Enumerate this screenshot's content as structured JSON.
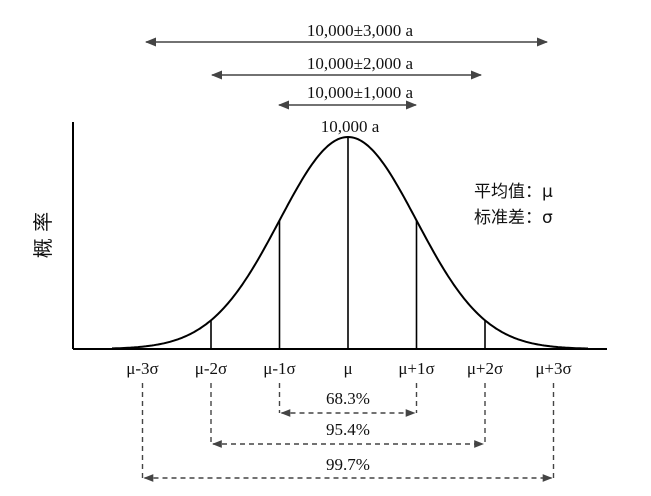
{
  "ranges": [
    {
      "label": "10,000±3,000 a",
      "k": 3
    },
    {
      "label": "10,000±2,000 a",
      "k": 2
    },
    {
      "label": "10,000±1,000 a",
      "k": 1
    }
  ],
  "peak_label": "10,000 a",
  "y_axis_label": "概 率",
  "legend": {
    "mean": "平均值：μ",
    "std": "标准差：σ"
  },
  "ticks": [
    "μ-3σ",
    "μ-2σ",
    "μ-1σ",
    "μ",
    "μ+1σ",
    "μ+2σ",
    "μ+3σ"
  ],
  "intervals": [
    {
      "label": "68.3%",
      "k": 1
    },
    {
      "label": "95.4%",
      "k": 2
    },
    {
      "label": "99.7%",
      "k": 3
    }
  ],
  "colors": {
    "curve": "#000000",
    "arrow": "#444444",
    "text": "#111111"
  }
}
